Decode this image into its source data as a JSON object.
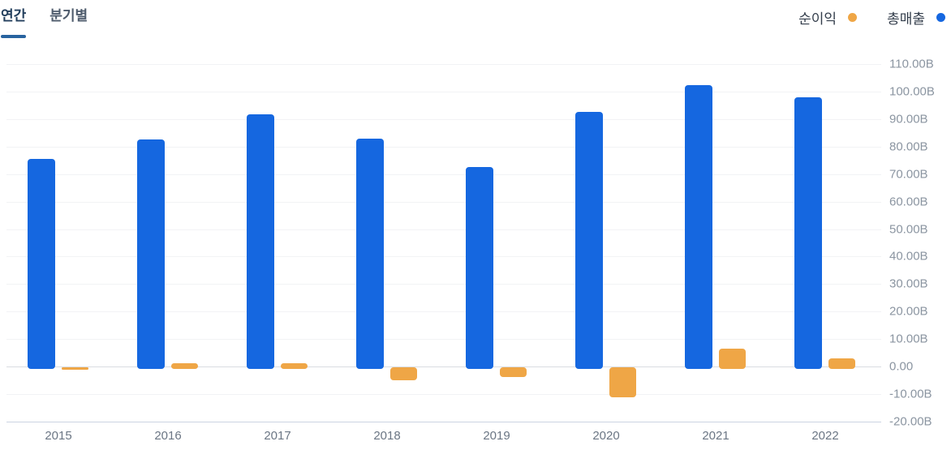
{
  "tabs": [
    {
      "label": "연간",
      "active": true
    },
    {
      "label": "분기별",
      "active": false
    }
  ],
  "legend": [
    {
      "label": "순이익",
      "color": "#EFA646",
      "series": "net_income"
    },
    {
      "label": "총매출",
      "color": "#1567E0",
      "series": "revenue"
    }
  ],
  "colors": {
    "revenue_blue": "#1567E0",
    "net_income_orange": "#EFA646",
    "active_tab": "#24405e",
    "tab_underline": "#28639f",
    "gridline": "#f2f3f5",
    "axis_label_gray": "#8b95a1"
  },
  "chart_data": {
    "type": "bar",
    "title": "",
    "xlabel": "",
    "ylabel": "",
    "unit": "B",
    "categories": [
      "2015",
      "2016",
      "2017",
      "2018",
      "2019",
      "2020",
      "2021",
      "2022"
    ],
    "series": [
      {
        "name": "총매출",
        "color": "#1567E0",
        "values": [
          75.5,
          82.7,
          91.8,
          83.0,
          72.7,
          92.5,
          102.4,
          97.9
        ]
      },
      {
        "name": "순이익",
        "color": "#EFA646",
        "values": [
          -0.4,
          1.2,
          1.2,
          -4.2,
          -2.9,
          -10.2,
          6.5,
          2.9
        ]
      }
    ],
    "y_ticks": [
      "110.00B",
      "100.00B",
      "90.00B",
      "80.00B",
      "70.00B",
      "60.00B",
      "50.00B",
      "40.00B",
      "30.00B",
      "20.00B",
      "10.00B",
      "0.00",
      "-10.00B",
      "-20.00B"
    ],
    "y_tick_values": [
      110,
      100,
      90,
      80,
      70,
      60,
      50,
      40,
      30,
      20,
      10,
      0,
      -10,
      -20
    ],
    "ylim": [
      -20,
      110
    ],
    "grid": true,
    "legend_position": "top-right"
  }
}
